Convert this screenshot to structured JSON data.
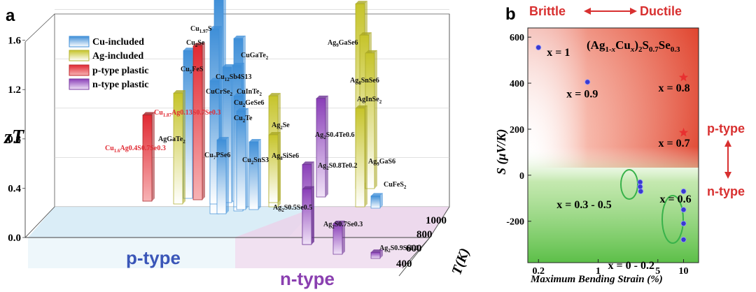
{
  "chart_data": [
    {
      "panel": "a",
      "type": "bar",
      "style": "3d-bar",
      "ylabel": "zT",
      "y_ticks": [
        "0.0",
        "0.4",
        "0.8",
        "1.2",
        "1.6"
      ],
      "ylim": [
        0,
        1.7
      ],
      "depth_axis_label": "T(K)",
      "depth_ticks": [
        "400",
        "600",
        "800",
        "1000"
      ],
      "legend": [
        "Cu-included",
        "Ag-included",
        "p-type plastic",
        "n-type plastic"
      ],
      "region_labels": {
        "p": "p-type",
        "n": "n-type"
      },
      "series": [
        {
          "name": "Cu-included",
          "color": "#5aa8e6",
          "points": [
            {
              "label": "Cu1.97S",
              "label_main": "Cu",
              "label_sub": "1.97",
              "label_rest": "S",
              "value": 1.71
            },
            {
              "label": "Cu2Se",
              "label_main": "Cu",
              "label_sub": "2",
              "label_rest": "Se",
              "value": 1.5
            },
            {
              "label": "CuGaTe2",
              "label_main": "CuGaTe",
              "label_sub": "2",
              "label_rest": "",
              "value": 1.4
            },
            {
              "label": "Cu5FeS4",
              "label_main": "Cu",
              "label_sub": "5",
              "label_rest": "FeS",
              "value": 1.2
            },
            {
              "label": "Cu12Sb4S13",
              "label_main": "Cu",
              "label_sub": "12",
              "label_rest": "Sb4S13",
              "value": 1.1
            },
            {
              "label": "CuCrSe2",
              "label_main": "CuCrSe",
              "label_sub": "2",
              "label_rest": "",
              "value": 1.0
            },
            {
              "label": "CuInTe2",
              "label_main": "CuInTe",
              "label_sub": "2",
              "label_rest": "",
              "value": 1.1
            },
            {
              "label": "Cu2GeSe6",
              "label_main": "Cu",
              "label_sub": "2",
              "label_rest": "GeSe6",
              "value": 0.9
            },
            {
              "label": "Cu2Te",
              "label_main": "Cu",
              "label_sub": "2",
              "label_rest": "Te",
              "value": 0.8
            },
            {
              "label": "Cu7PSe6",
              "label_main": "Cu",
              "label_sub": "7",
              "label_rest": "PSe6",
              "value": 0.6
            },
            {
              "label": "Cu2SnS3",
              "label_main": "Cu",
              "label_sub": "2",
              "label_rest": "SnS3",
              "value": 0.55
            },
            {
              "label": "CuFeS2",
              "label_main": "CuFeS",
              "label_sub": "2",
              "label_rest": "",
              "value": 0.1
            }
          ]
        },
        {
          "name": "Ag-included",
          "color": "#d4d24a",
          "points": [
            {
              "label": "AgGaTe2",
              "label_main": "AgGaTe",
              "label_sub": "2",
              "label_rest": "",
              "value": 0.9
            },
            {
              "label": "Ag2Se",
              "label_main": "Ag",
              "label_sub": "2",
              "label_rest": "Se",
              "value": 0.9
            },
            {
              "label": "Ag8SiSe6",
              "label_main": "Ag",
              "label_sub": "8",
              "label_rest": "SiSe6",
              "value": 0.55
            },
            {
              "label": "Ag9GaSe6",
              "label_main": "Ag",
              "label_sub": "9",
              "label_rest": "GaSe6",
              "value": 1.5
            },
            {
              "label": "Ag8SnSe6",
              "label_main": "Ag",
              "label_sub": "8",
              "label_rest": "SnSe6",
              "value": 1.2
            },
            {
              "label": "AgInSe2",
              "label_main": "AgInSe",
              "label_sub": "2",
              "label_rest": "",
              "value": 1.1
            },
            {
              "label": "Ag9GaS6",
              "label_main": "Ag",
              "label_sub": "9",
              "label_rest": "GaS6",
              "value": 0.8
            }
          ]
        },
        {
          "name": "p-type plastic",
          "color": "#e8383f",
          "points": [
            {
              "label": "Cu1.87Ag0.13S0.7Se0.3",
              "label_main": "Cu",
              "label_sub": "1.87",
              "label_rest": "Ag0.13S0.7Se0.3",
              "value": 1.25
            },
            {
              "label": "Cu1.6Ag0.4S0.7Se0.3",
              "label_main": "Cu",
              "label_sub": "1.6",
              "label_rest": "Ag0.4S0.7Se0.3",
              "value": 0.7
            }
          ]
        },
        {
          "name": "n-type plastic",
          "color": "#9d5fc4",
          "points": [
            {
              "label": "Ag2S0.4Te0.6",
              "label_main": "Ag",
              "label_sub": "2",
              "label_rest": "S0.4Te0.6",
              "value": 0.8
            },
            {
              "label": "Ag2S0.8Te0.2",
              "label_main": "Ag",
              "label_sub": "2",
              "label_rest": "S0.8Te0.2",
              "value": 0.65
            },
            {
              "label": "Ag2S0.5Se0.5",
              "label_main": "Ag",
              "label_sub": "2",
              "label_rest": "S0.5Se0.5",
              "value": 0.45
            },
            {
              "label": "Ag2S0.7Se0.3",
              "label_main": "Ag",
              "label_sub": "2",
              "label_rest": "S0.7Se0.3",
              "value": 0.25
            },
            {
              "label": "Ag2S0.9Se0.1",
              "label_main": "Ag",
              "label_sub": "2",
              "label_rest": "S0.9Se0.1",
              "value": 0.05
            }
          ]
        }
      ]
    },
    {
      "panel": "b",
      "type": "scatter",
      "title": "(Ag1-xCux)2S0.7Se0.3",
      "xlabel": "Maximum Bending Strain (%)",
      "ylabel": "S (μV/K)",
      "x_scale": "log",
      "xlim": [
        0.15,
        15
      ],
      "ylim": [
        -380,
        640
      ],
      "x_ticks": [
        0.2,
        1,
        5,
        10
      ],
      "x_tick_labels": [
        "0.2",
        "1",
        "5",
        "10"
      ],
      "y_ticks": [
        -200,
        0,
        200,
        400,
        600
      ],
      "top_labels": {
        "left": "Brittle",
        "right": "Ductile"
      },
      "side_labels": {
        "top": "p-type",
        "bottom": "n-type"
      },
      "points": [
        {
          "x": 0.2,
          "y": 555,
          "marker": "circle",
          "label": "x = 1"
        },
        {
          "x": 0.75,
          "y": 405,
          "marker": "circle",
          "label": "x = 0.9"
        },
        {
          "x": 10,
          "y": 425,
          "marker": "star",
          "label": "x = 0.8"
        },
        {
          "x": 10,
          "y": 185,
          "marker": "star",
          "label": "x = 0.7"
        },
        {
          "x": 10,
          "y": -70,
          "marker": "circle",
          "label": "x = 0.6"
        },
        {
          "x": 3.1,
          "y": -30,
          "marker": "circle",
          "label": ""
        },
        {
          "x": 3.1,
          "y": -50,
          "marker": "circle",
          "label": ""
        },
        {
          "x": 3.15,
          "y": -70,
          "marker": "circle",
          "label": "x = 0.3 - 0.5"
        },
        {
          "x": 10,
          "y": -150,
          "marker": "circle",
          "label": ""
        },
        {
          "x": 10,
          "y": -210,
          "marker": "circle",
          "label": ""
        },
        {
          "x": 10,
          "y": -280,
          "marker": "circle",
          "label": "x = 0 - 0.2"
        }
      ],
      "colors": {
        "ductile_bg": "#e0452f",
        "brittle_bg": "#ffffff",
        "ntype_bg": "#5cbf48",
        "point": "#3a3ad0",
        "star": "#e83030",
        "accent_red": "#d83030"
      }
    }
  ]
}
